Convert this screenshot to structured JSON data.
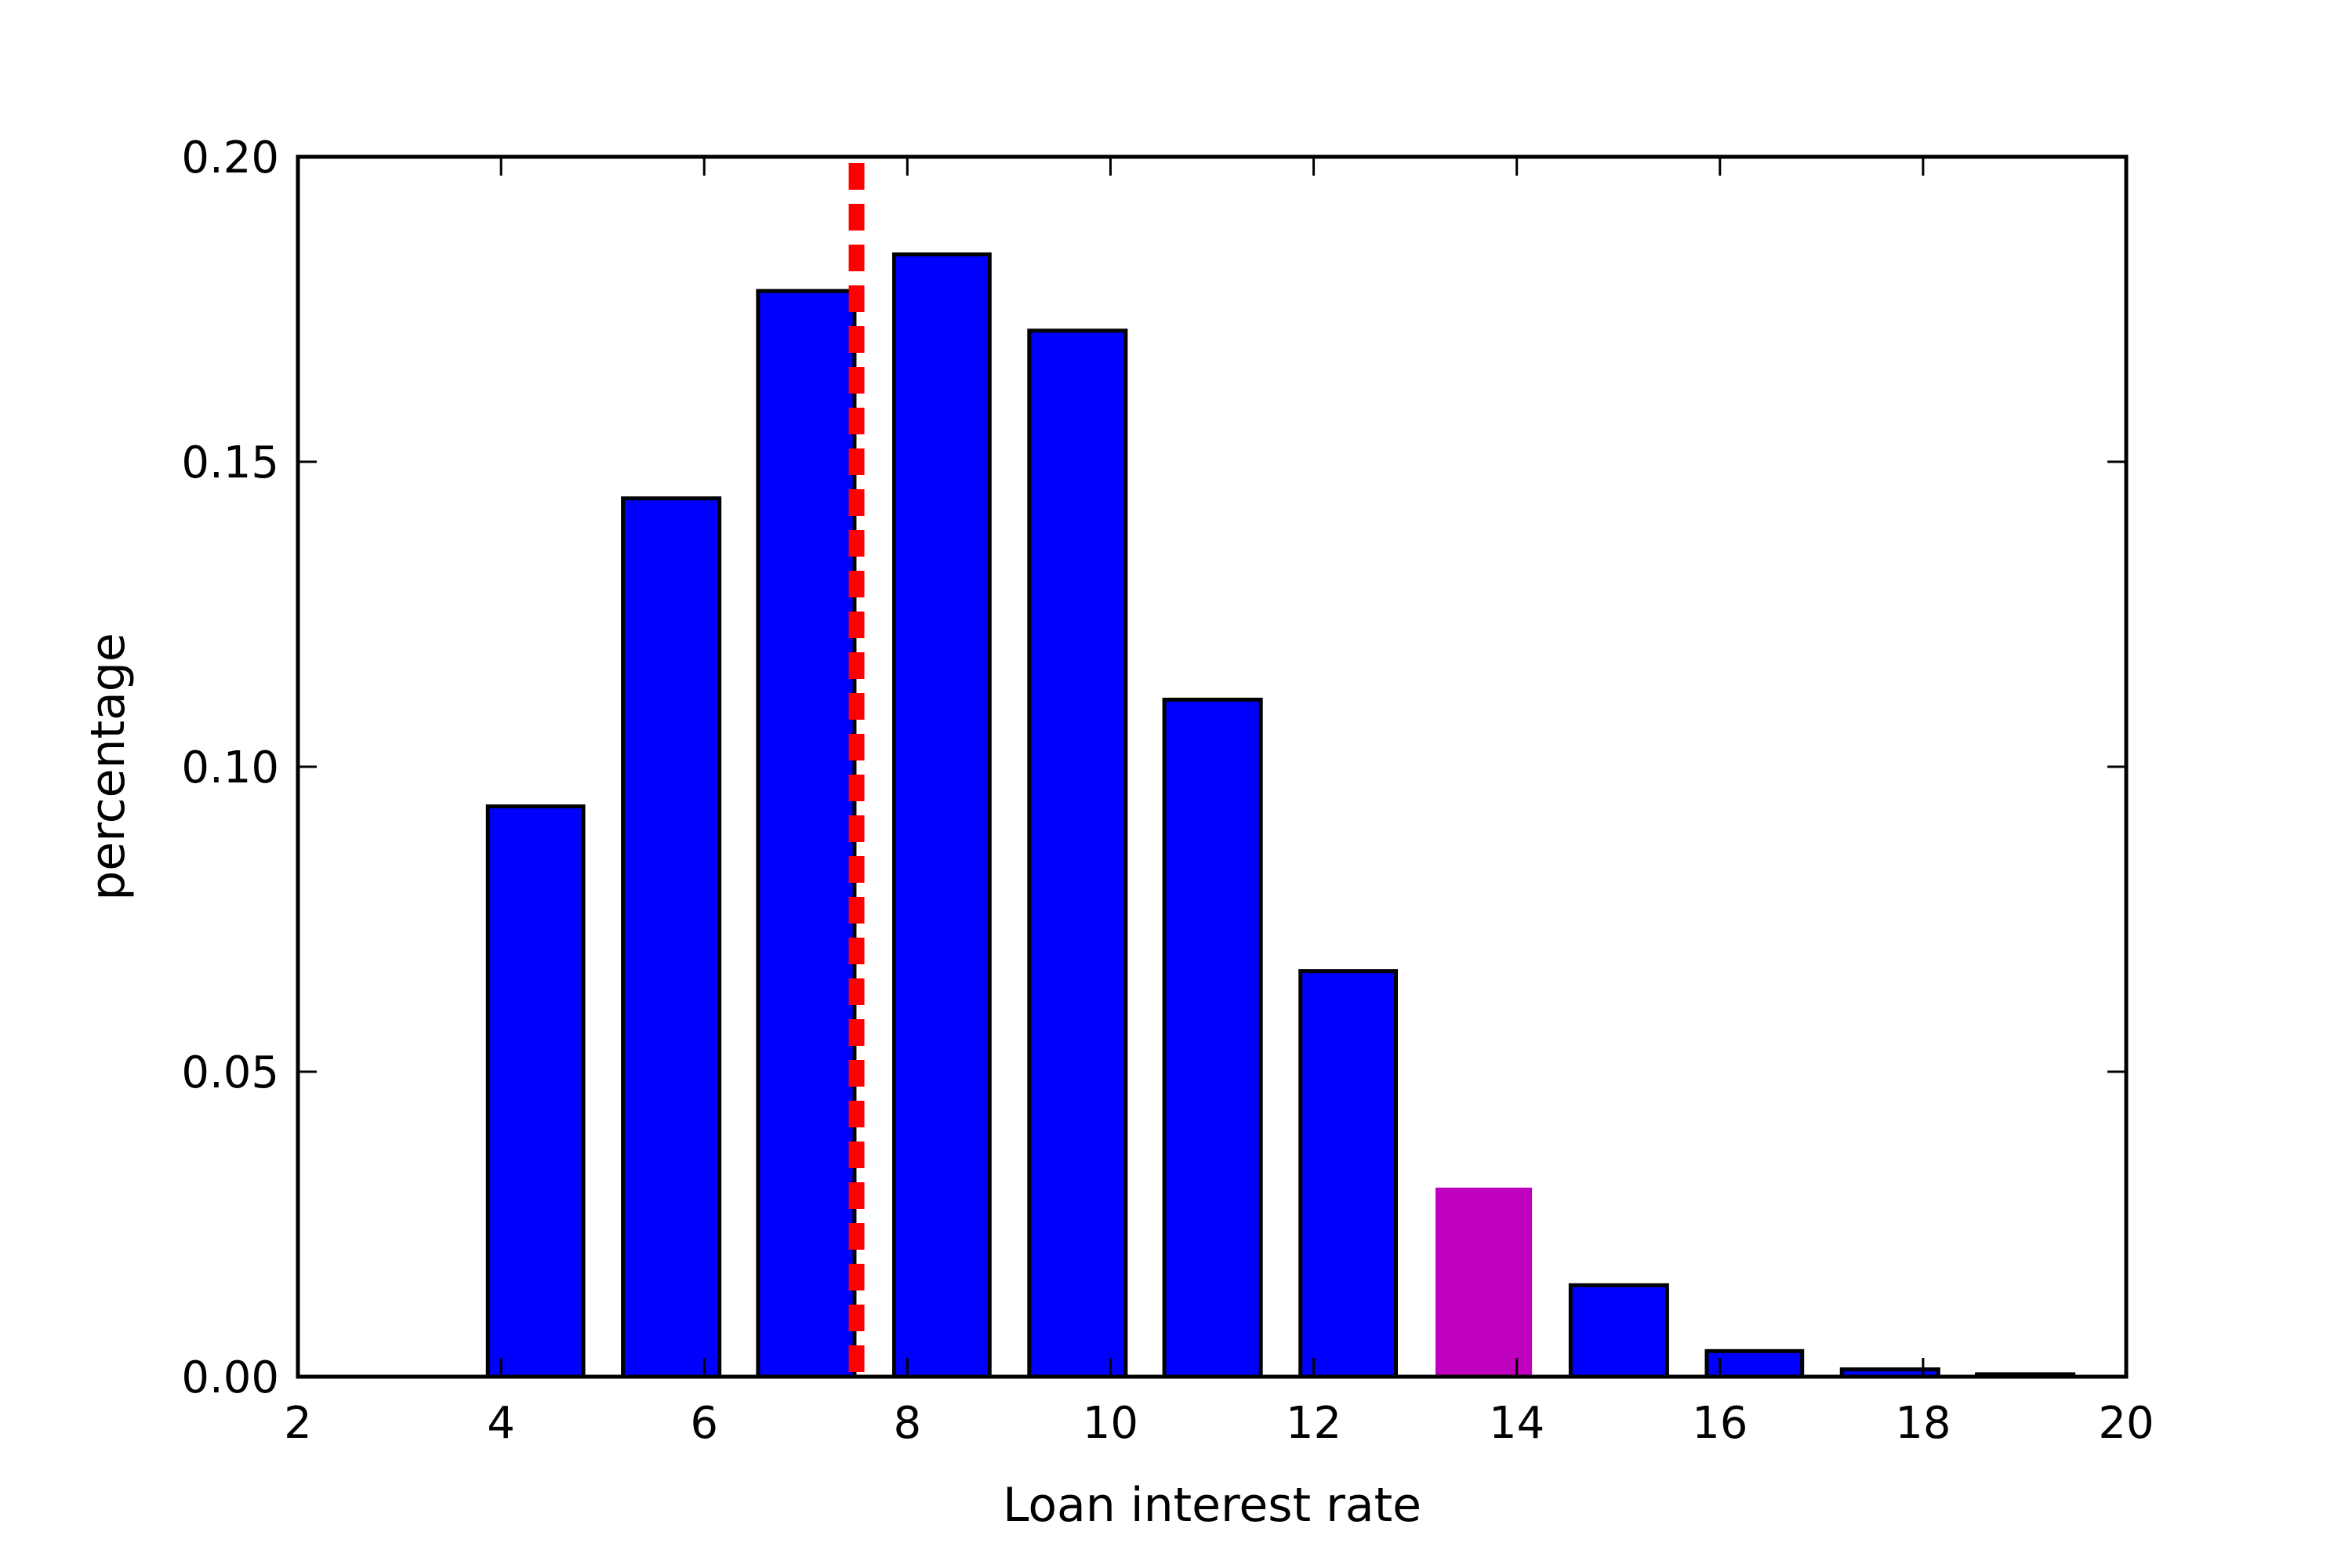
{
  "chart_data": {
    "type": "bar",
    "title": "",
    "xlabel": "Loan interest rate",
    "ylabel": "percentage",
    "xlim": [
      2,
      20
    ],
    "ylim": [
      0,
      0.2
    ],
    "x_ticks": [
      "2",
      "4",
      "6",
      "8",
      "10",
      "12",
      "14",
      "16",
      "18",
      "20"
    ],
    "y_ticks": [
      "0.00",
      "0.05",
      "0.10",
      "0.15",
      "0.20"
    ],
    "grid": false,
    "bar_color": "#0000ff",
    "highlight_color": "#bf00bf",
    "bars": [
      {
        "x_start": 3.87,
        "x_end": 4.81,
        "value": 0.0935,
        "highlight": false
      },
      {
        "x_start": 5.2,
        "x_end": 6.15,
        "value": 0.144,
        "highlight": false
      },
      {
        "x_start": 6.53,
        "x_end": 7.48,
        "value": 0.178,
        "highlight": false
      },
      {
        "x_start": 7.87,
        "x_end": 8.81,
        "value": 0.184,
        "highlight": false
      },
      {
        "x_start": 9.2,
        "x_end": 10.15,
        "value": 0.1715,
        "highlight": false
      },
      {
        "x_start": 10.53,
        "x_end": 11.48,
        "value": 0.111,
        "highlight": false
      },
      {
        "x_start": 11.87,
        "x_end": 12.81,
        "value": 0.0665,
        "highlight": false
      },
      {
        "x_start": 13.2,
        "x_end": 14.15,
        "value": 0.031,
        "highlight": true
      },
      {
        "x_start": 14.53,
        "x_end": 15.48,
        "value": 0.015,
        "highlight": false
      },
      {
        "x_start": 15.87,
        "x_end": 16.81,
        "value": 0.0042,
        "highlight": false
      },
      {
        "x_start": 17.2,
        "x_end": 18.15,
        "value": 0.0012,
        "highlight": false
      },
      {
        "x_start": 18.53,
        "x_end": 19.48,
        "value": 0.0004,
        "highlight": false
      }
    ],
    "reference_line": {
      "x": 7.5,
      "color": "#ff0000",
      "style": "dashed"
    }
  }
}
